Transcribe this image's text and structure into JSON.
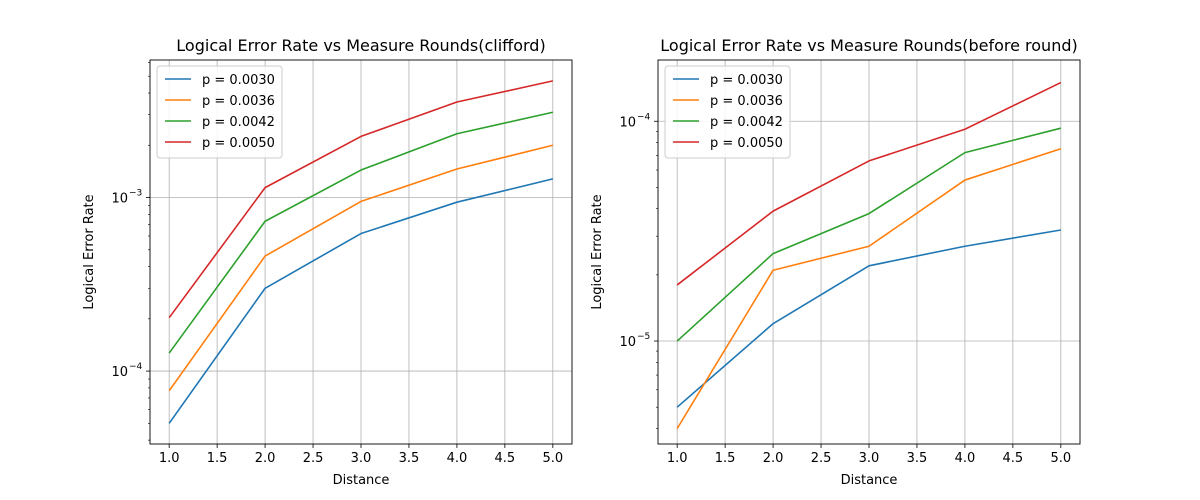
{
  "chart_data": [
    {
      "type": "line",
      "title": "Logical Error Rate vs Measure Rounds(clifford)",
      "xlabel": "Distance",
      "ylabel": "Logical Error Rate",
      "yscale": "log",
      "xlim": [
        0.8,
        5.2
      ],
      "ylim": [
        3.8e-05,
        0.0062
      ],
      "grid": true,
      "legend_position": "upper-left",
      "x": [
        1.0,
        2.0,
        3.0,
        4.0,
        5.0
      ],
      "x_ticks": [
        "1.0",
        "1.5",
        "2.0",
        "2.5",
        "3.0",
        "3.5",
        "4.0",
        "4.5",
        "5.0"
      ],
      "y_major_ticks": [
        {
          "value": 0.0001,
          "base": "10",
          "exp": "−4"
        },
        {
          "value": 0.001,
          "base": "10",
          "exp": "−3"
        }
      ],
      "series": [
        {
          "name": "p = 0.0030",
          "color": "#1f77b4",
          "values": [
            5e-05,
            0.0003,
            0.00062,
            0.00094,
            0.00128
          ]
        },
        {
          "name": "p = 0.0036",
          "color": "#ff7f0e",
          "values": [
            7.7e-05,
            0.00046,
            0.00095,
            0.00146,
            0.002
          ]
        },
        {
          "name": "p = 0.0042",
          "color": "#2ca02c",
          "values": [
            0.000127,
            0.00073,
            0.00144,
            0.00233,
            0.0031
          ]
        },
        {
          "name": "p = 0.0050",
          "color": "#d62728",
          "values": [
            0.000203,
            0.00114,
            0.00225,
            0.00355,
            0.0047
          ]
        }
      ]
    },
    {
      "type": "line",
      "title": "Logical Error Rate vs Measure Rounds(before round)",
      "xlabel": "Distance",
      "ylabel": "Logical Error Rate",
      "yscale": "log",
      "xlim": [
        0.8,
        5.2
      ],
      "ylim": [
        3.4e-06,
        0.00019
      ],
      "grid": true,
      "legend_position": "upper-left",
      "x": [
        1.0,
        2.0,
        3.0,
        4.0,
        5.0
      ],
      "x_ticks": [
        "1.0",
        "1.5",
        "2.0",
        "2.5",
        "3.0",
        "3.5",
        "4.0",
        "4.5",
        "5.0"
      ],
      "y_major_ticks": [
        {
          "value": 1e-05,
          "base": "10",
          "exp": "−5"
        },
        {
          "value": 0.0001,
          "base": "10",
          "exp": "−4"
        }
      ],
      "series": [
        {
          "name": "p = 0.0030",
          "color": "#1f77b4",
          "values": [
            5e-06,
            1.2e-05,
            2.2e-05,
            2.7e-05,
            3.2e-05
          ]
        },
        {
          "name": "p = 0.0036",
          "color": "#ff7f0e",
          "values": [
            4e-06,
            2.1e-05,
            2.7e-05,
            5.4e-05,
            7.5e-05
          ]
        },
        {
          "name": "p = 0.0042",
          "color": "#2ca02c",
          "values": [
            1e-05,
            2.5e-05,
            3.8e-05,
            7.2e-05,
            9.3e-05
          ]
        },
        {
          "name": "p = 0.0050",
          "color": "#d62728",
          "values": [
            1.8e-05,
            3.9e-05,
            6.6e-05,
            9.2e-05,
            0.00015
          ]
        }
      ]
    }
  ]
}
